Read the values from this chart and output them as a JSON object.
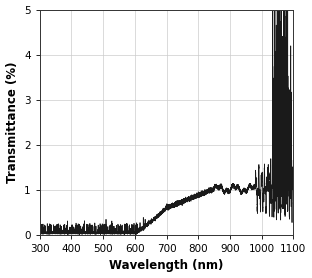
{
  "xlabel": "Wavelength (nm)",
  "ylabel": "Transmittance (%)",
  "xlim": [
    300,
    1100
  ],
  "ylim": [
    0,
    5
  ],
  "xticks": [
    300,
    400,
    500,
    600,
    700,
    800,
    900,
    1000,
    1100
  ],
  "yticks": [
    0,
    1,
    2,
    3,
    4,
    5
  ],
  "grid": true,
  "line_color": "#1a1a1a",
  "line_width": 0.55,
  "background_color": "#ffffff",
  "fig_facecolor": "#ffffff",
  "xlabel_fontsize": 8.5,
  "ylabel_fontsize": 8.5,
  "tick_fontsize": 7.5,
  "xlabel_fontweight": "bold",
  "ylabel_fontweight": "bold",
  "grid_color": "#cccccc",
  "grid_lw": 0.5
}
